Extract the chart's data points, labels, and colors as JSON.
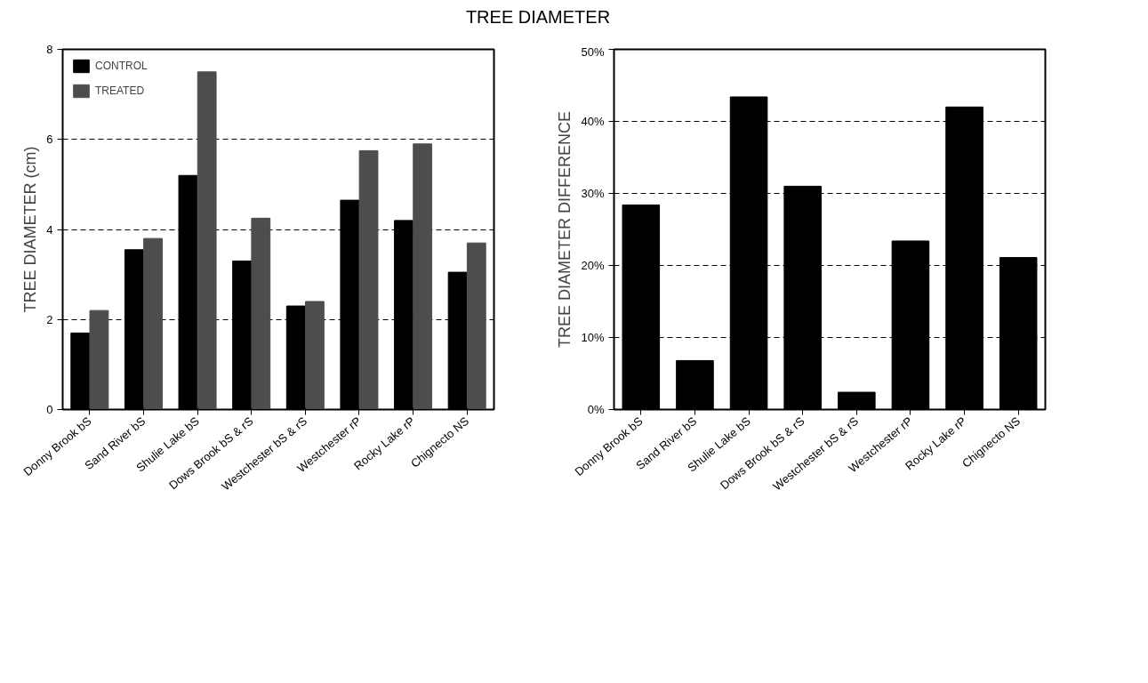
{
  "chart_data": [
    {
      "type": "bar",
      "title": "TREE DIAMETER",
      "ylabel": "TREE DIAMETER (cm)",
      "categories": [
        "Donny Brook bS",
        "Sand River bS",
        "Shulie Lake bS",
        "Dows Brook bS & rS",
        "Westchester bS & rS",
        "Westchester rP",
        "Rocky Lake rP",
        "Chignecto NS"
      ],
      "series": [
        {
          "name": "CONTROL",
          "color": "#000000",
          "values": [
            1.7,
            3.55,
            5.2,
            3.3,
            2.3,
            4.65,
            4.2,
            3.05
          ]
        },
        {
          "name": "TREATED",
          "color": "#4d4d4d",
          "values": [
            2.2,
            3.8,
            7.5,
            4.25,
            2.4,
            5.75,
            5.9,
            3.7
          ]
        }
      ],
      "ylim": [
        0,
        8
      ],
      "yticks": [
        0,
        2,
        4,
        6,
        8
      ],
      "grid": "y",
      "legend": "top left"
    },
    {
      "type": "bar",
      "ylabel": "TREE DIAMETER DIFFERENCE",
      "categories": [
        "Donny Brook bS",
        "Sand River bS",
        "Shulie Lake bS",
        "Dows Brook bS & rS",
        "Westchester bS & rS",
        "Westchester rP",
        "Rocky Lake rP",
        "Chignecto NS"
      ],
      "series": [
        {
          "color": "#000000",
          "values": [
            28.4,
            6.8,
            43.4,
            31.0,
            2.4,
            23.4,
            42.0,
            21.1
          ]
        }
      ],
      "ylim": [
        0,
        50
      ],
      "yticks": [
        {
          "value": 0,
          "label": "0%"
        },
        {
          "value": 10,
          "label": "10%"
        },
        {
          "value": 20,
          "label": "20%"
        },
        {
          "value": 30,
          "label": "30%"
        },
        {
          "value": 40,
          "label": "40%"
        },
        {
          "value": 50,
          "label": "50%"
        }
      ],
      "grid": "y"
    }
  ]
}
